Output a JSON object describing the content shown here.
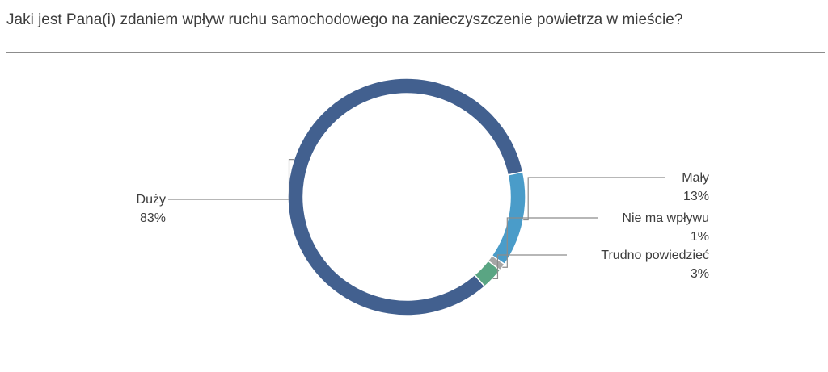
{
  "chart_data": {
    "type": "pie",
    "title": "Jaki jest Pana(i) zdaniem wpływ ruchu samochodowego na zanieczyszczenie powietrza w mieście?",
    "categories": [
      "Duży",
      "Mały",
      "Nie ma wpływu",
      "Trudno powiedzieć"
    ],
    "values": [
      83,
      13,
      1,
      3
    ],
    "value_labels": [
      "83%",
      "13%",
      "1%",
      "3%"
    ],
    "colors": [
      "#42608f",
      "#4a9cc9",
      "#a6a6a6",
      "#5aa583"
    ],
    "donut": true
  }
}
